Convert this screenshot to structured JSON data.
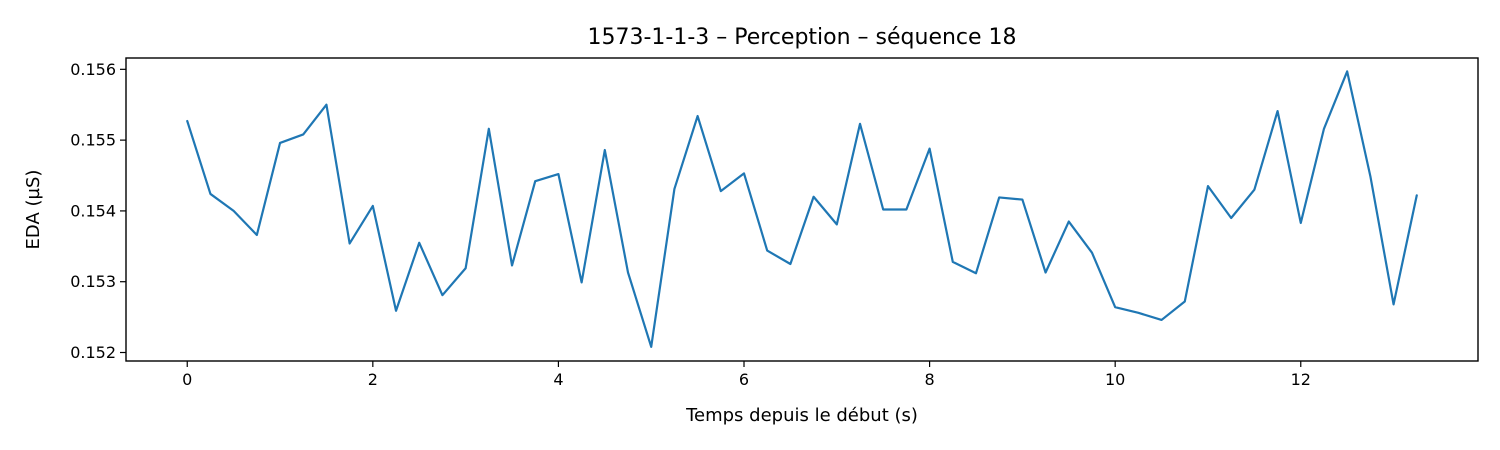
{
  "chart_data": {
    "type": "line",
    "title": "1573-1-1-3 – Perception – séquence 18",
    "xlabel": "Temps depuis le début (s)",
    "ylabel": "EDA (µS)",
    "xlim": [
      -0.66,
      13.91
    ],
    "ylim": [
      0.15188,
      0.15616
    ],
    "xticks": [
      0,
      2,
      4,
      6,
      8,
      10,
      12
    ],
    "xtick_labels": [
      "0",
      "2",
      "4",
      "6",
      "8",
      "10",
      "12"
    ],
    "yticks": [
      0.152,
      0.153,
      0.154,
      0.155,
      0.156
    ],
    "ytick_labels": [
      "0.152",
      "0.153",
      "0.154",
      "0.155",
      "0.156"
    ],
    "grid": false,
    "legend": "none",
    "line_color": "#1f77b4",
    "series": [
      {
        "x": [
          0,
          0.25,
          0.5,
          0.75,
          1,
          1.25,
          1.5,
          1.75,
          2,
          2.25,
          2.5,
          2.75,
          3,
          3.25,
          3.5,
          3.75,
          4,
          4.25,
          4.5,
          4.75,
          5,
          5.25,
          5.5,
          5.75,
          6,
          6.25,
          6.5,
          6.75,
          7,
          7.25,
          7.5,
          7.75,
          8,
          8.25,
          8.5,
          8.75,
          9,
          9.25,
          9.5,
          9.75,
          10,
          10.25,
          10.5,
          10.75,
          11,
          11.25,
          11.5,
          11.75,
          12,
          12.25,
          12.5,
          12.75,
          13,
          13.25
        ],
        "values": [
          0.15527,
          0.15424,
          0.154,
          0.15366,
          0.15496,
          0.15508,
          0.1555,
          0.15354,
          0.15407,
          0.15259,
          0.15355,
          0.15281,
          0.15319,
          0.15516,
          0.15323,
          0.15442,
          0.15452,
          0.15299,
          0.15486,
          0.15313,
          0.15208,
          0.15431,
          0.15534,
          0.15428,
          0.15453,
          0.15344,
          0.15325,
          0.1542,
          0.15381,
          0.15523,
          0.15402,
          0.15402,
          0.15488,
          0.15328,
          0.15312,
          0.15419,
          0.15416,
          0.15313,
          0.15385,
          0.15341,
          0.15264,
          0.15256,
          0.15246,
          0.15272,
          0.15435,
          0.1539,
          0.1543,
          0.15541,
          0.15383,
          0.15516,
          0.15597,
          0.15449,
          0.15268,
          0.15422
        ]
      }
    ]
  }
}
